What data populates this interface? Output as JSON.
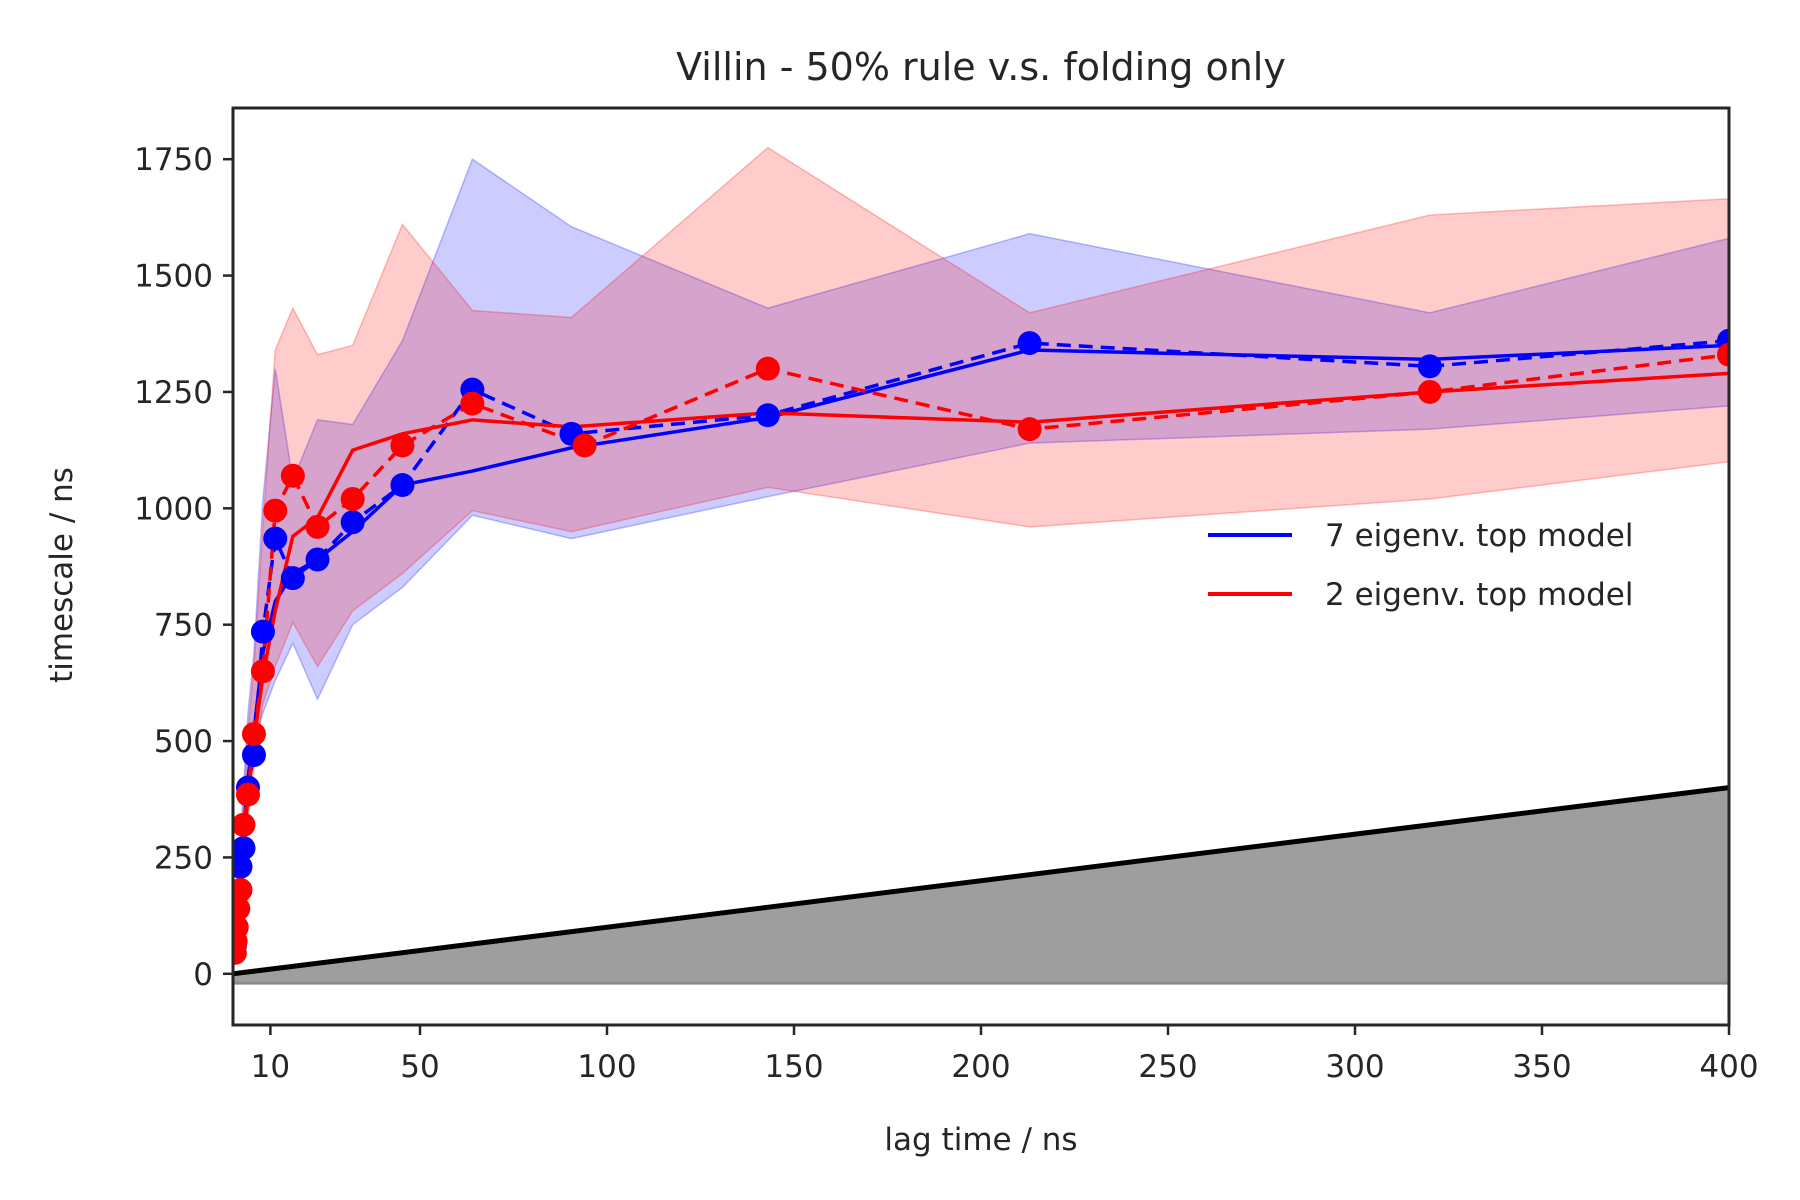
{
  "chart_data": {
    "type": "line",
    "title": "Villin - 50% rule v.s. folding only",
    "xlabel": "lag time / ns",
    "ylabel": "timescale / ns",
    "xlim": [
      0,
      400
    ],
    "ylim": [
      -110,
      1860
    ],
    "x_ticks": [
      10,
      50,
      100,
      150,
      200,
      250,
      300,
      350,
      400
    ],
    "y_ticks": [
      0,
      250,
      500,
      750,
      1000,
      1250,
      1500,
      1750
    ],
    "grid": false,
    "legend": {
      "placement": "center-right",
      "entries": [
        "7 eigenv. top model",
        "2 eigenv. top model"
      ]
    },
    "series": [
      {
        "name": "7 eigenv. top model",
        "color": "#0000ff",
        "x": [
          0.5,
          0.7,
          1.0,
          1.4,
          2.0,
          2.8,
          4.0,
          5.6,
          8.0,
          11.3,
          16.0,
          22.6,
          32.0,
          45.3,
          64.0,
          90.5,
          128.0,
          181.0,
          256.0,
          362.0,
          400.0
        ],
        "markers": [
          60,
          100,
          140,
          175,
          230,
          270,
          400,
          470,
          735,
          935,
          850,
          890,
          970,
          1050,
          1255,
          1160,
          1200,
          1355,
          1305,
          1360
        ],
        "marker_x": [
          0.5,
          0.7,
          1.0,
          1.4,
          2.0,
          2.8,
          4.0,
          5.6,
          8.0,
          11.3,
          16.0,
          22.6,
          32.0,
          45.3,
          64.0,
          90.5,
          143.0,
          213.0,
          320.0,
          400.0
        ],
        "solid_x": [
          0.5,
          2.8,
          4.0,
          5.6,
          8.0,
          11.3,
          16.0,
          22.6,
          32.0,
          45.3,
          64.0,
          90.5,
          143.0,
          213.0,
          320.0,
          400.0
        ],
        "solid_y": [
          60,
          300,
          420,
          520,
          690,
          800,
          860,
          890,
          950,
          1050,
          1080,
          1130,
          1195,
          1340,
          1320,
          1350
        ],
        "band_x": [
          0.5,
          2.8,
          4.0,
          5.6,
          8.0,
          11.3,
          16.0,
          22.6,
          32.0,
          45.3,
          64.0,
          90.5,
          143.0,
          213.0,
          320.0,
          400.0
        ],
        "band_low": [
          40,
          230,
          350,
          500,
          560,
          630,
          710,
          590,
          750,
          830,
          985,
          935,
          1025,
          1140,
          1170,
          1220
        ],
        "band_high": [
          80,
          400,
          560,
          690,
          1020,
          1300,
          1060,
          1190,
          1180,
          1360,
          1750,
          1605,
          1430,
          1590,
          1420,
          1580
        ]
      },
      {
        "name": "2 eigenv. top model",
        "color": "#ff0000",
        "markers": [
          45,
          70,
          100,
          140,
          180,
          320,
          385,
          515,
          650,
          995,
          1070,
          960,
          1020,
          1135,
          1225,
          1135,
          1300,
          1170,
          1250,
          1330
        ],
        "marker_x": [
          0.5,
          0.7,
          1.0,
          1.4,
          2.0,
          2.8,
          4.0,
          5.6,
          8.0,
          11.3,
          16.0,
          22.6,
          32.0,
          45.3,
          64.0,
          94.0,
          143.0,
          213.0,
          320.0,
          400.0
        ],
        "solid_x": [
          0.5,
          2.8,
          4.0,
          5.6,
          8.0,
          11.3,
          16.0,
          22.6,
          32.0,
          45.3,
          64.0,
          90.5,
          143.0,
          213.0,
          320.0,
          400.0
        ],
        "solid_y": [
          50,
          280,
          380,
          500,
          640,
          780,
          940,
          980,
          1125,
          1160,
          1190,
          1175,
          1205,
          1185,
          1250,
          1290
        ],
        "band_x": [
          0.5,
          2.8,
          4.0,
          5.6,
          8.0,
          11.3,
          16.0,
          22.6,
          32.0,
          45.3,
          64.0,
          90.5,
          143.0,
          213.0,
          320.0,
          400.0
        ],
        "band_low": [
          30,
          200,
          330,
          440,
          580,
          660,
          755,
          660,
          780,
          860,
          995,
          950,
          1045,
          960,
          1020,
          1100
        ],
        "band_high": [
          70,
          360,
          520,
          660,
          960,
          1340,
          1430,
          1330,
          1350,
          1610,
          1425,
          1410,
          1775,
          1420,
          1630,
          1665
        ]
      }
    ],
    "reference_line": {
      "label": "lag time",
      "color": "#000000",
      "fill": "#9e9e9e",
      "x": [
        0,
        400
      ],
      "y": [
        0,
        400
      ],
      "floor": -20
    }
  }
}
